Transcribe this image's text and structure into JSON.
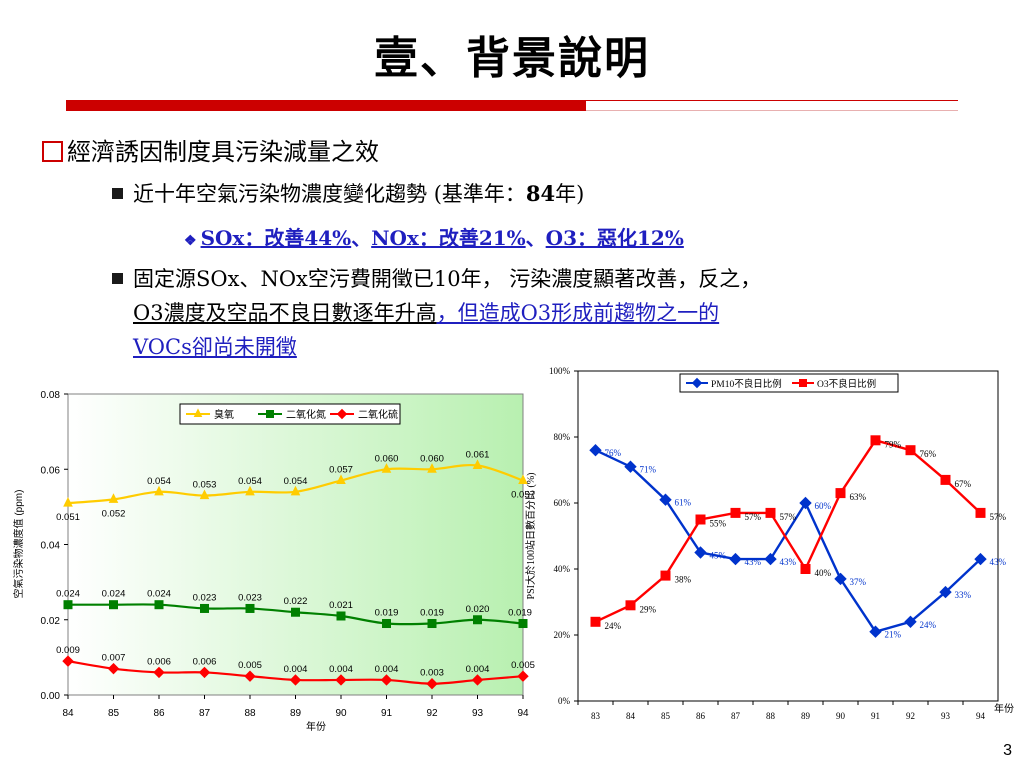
{
  "title": "壹、背景說明",
  "bullet1": "經濟誘因制度具污染減量之效",
  "bullet2": {
    "text": "近十年空氣污染物濃度變化趨勢",
    "open": "(",
    "inner": "基準年：",
    "num": "84",
    "tail": "年)"
  },
  "bullet3": {
    "part1": "SOx：改善44%",
    "sep1": "、",
    "part2": "NOx：改善21%",
    "sep2": "、",
    "part3": "O3：惡化12%"
  },
  "bullet4": {
    "line1a": "固定源SOx、NOx空污費開徵已10年，",
    "line1b": "污染濃度顯著改善，反之，",
    "line2a": "O3濃度及空品不良日數逐年升高",
    "line2b": "，但造成O3形成前趨物之一的",
    "line3": "VOCs卻尚未開徵"
  },
  "page_number": "3",
  "colors": {
    "accent_red": "#cc0000",
    "link_blue": "#1f1fbf",
    "ozone": "#ffcc00",
    "no2": "#008000",
    "so2": "#ff0000",
    "pm10": "#0033cc",
    "o3_ratio": "#ff0000"
  },
  "chart_data": [
    {
      "type": "line",
      "ylabel": "空氣污染物濃度值 (ppm)",
      "xlabel": "年份",
      "ylim": [
        0,
        0.08
      ],
      "yticks": [
        "0.00",
        "0.02",
        "0.04",
        "0.06",
        "0.08"
      ],
      "categories": [
        "84",
        "85",
        "86",
        "87",
        "88",
        "89",
        "90",
        "91",
        "92",
        "93",
        "94"
      ],
      "legend_position": "top",
      "series": [
        {
          "name": "臭氧",
          "color": "#ffcc00",
          "marker": "triangle",
          "values": [
            0.051,
            0.052,
            0.054,
            0.053,
            0.054,
            0.054,
            0.057,
            0.06,
            0.06,
            0.061,
            0.057
          ],
          "labels": [
            "0.051",
            "0.052",
            "0.054",
            "0.053",
            "0.054",
            "0.054",
            "0.057",
            "0.060",
            "0.060",
            "0.061",
            "0.057"
          ]
        },
        {
          "name": "二氧化氮",
          "color": "#008000",
          "marker": "square",
          "values": [
            0.024,
            0.024,
            0.024,
            0.023,
            0.023,
            0.022,
            0.021,
            0.019,
            0.019,
            0.02,
            0.019
          ],
          "labels": [
            "0.024",
            "0.024",
            "0.024",
            "0.023",
            "0.023",
            "0.022",
            "0.021",
            "0.019",
            "0.019",
            "0.020",
            "0.019"
          ]
        },
        {
          "name": "二氧化硫",
          "color": "#ff0000",
          "marker": "diamond",
          "values": [
            0.009,
            0.007,
            0.006,
            0.006,
            0.005,
            0.004,
            0.004,
            0.004,
            0.003,
            0.004,
            0.005
          ],
          "labels": [
            "0.009",
            "0.007",
            "0.006",
            "0.006",
            "0.005",
            "0.004",
            "0.004",
            "0.004",
            "0.003",
            "0.004",
            "0.005"
          ]
        }
      ]
    },
    {
      "type": "line",
      "ylabel": "PSI大於100站日數百分比 (%)",
      "xlabel": "年份",
      "ylim": [
        0,
        100
      ],
      "yticks": [
        "0%",
        "20%",
        "40%",
        "60%",
        "80%",
        "100%"
      ],
      "categories": [
        "83",
        "84",
        "85",
        "86",
        "87",
        "88",
        "89",
        "90",
        "91",
        "92",
        "93",
        "94"
      ],
      "legend_position": "top-right",
      "series": [
        {
          "name": "PM10不良日比例",
          "color": "#0033cc",
          "marker": "diamond",
          "values": [
            76,
            71,
            61,
            45,
            43,
            43,
            60,
            37,
            21,
            24,
            33,
            43
          ],
          "labels": [
            "76%",
            "71%",
            "61%",
            "45%",
            "43%",
            "43%",
            "60%",
            "37%",
            "21%",
            "24%",
            "33%",
            "43%"
          ]
        },
        {
          "name": "O3不良日比例",
          "color": "#ff0000",
          "marker": "square",
          "values": [
            24,
            29,
            38,
            55,
            57,
            57,
            40,
            63,
            79,
            76,
            67,
            57
          ],
          "labels": [
            "24%",
            "29%",
            "38%",
            "55%",
            "57%",
            "57%",
            "40%",
            "63%",
            "79%",
            "76%",
            "67%",
            "57%"
          ]
        }
      ]
    }
  ]
}
